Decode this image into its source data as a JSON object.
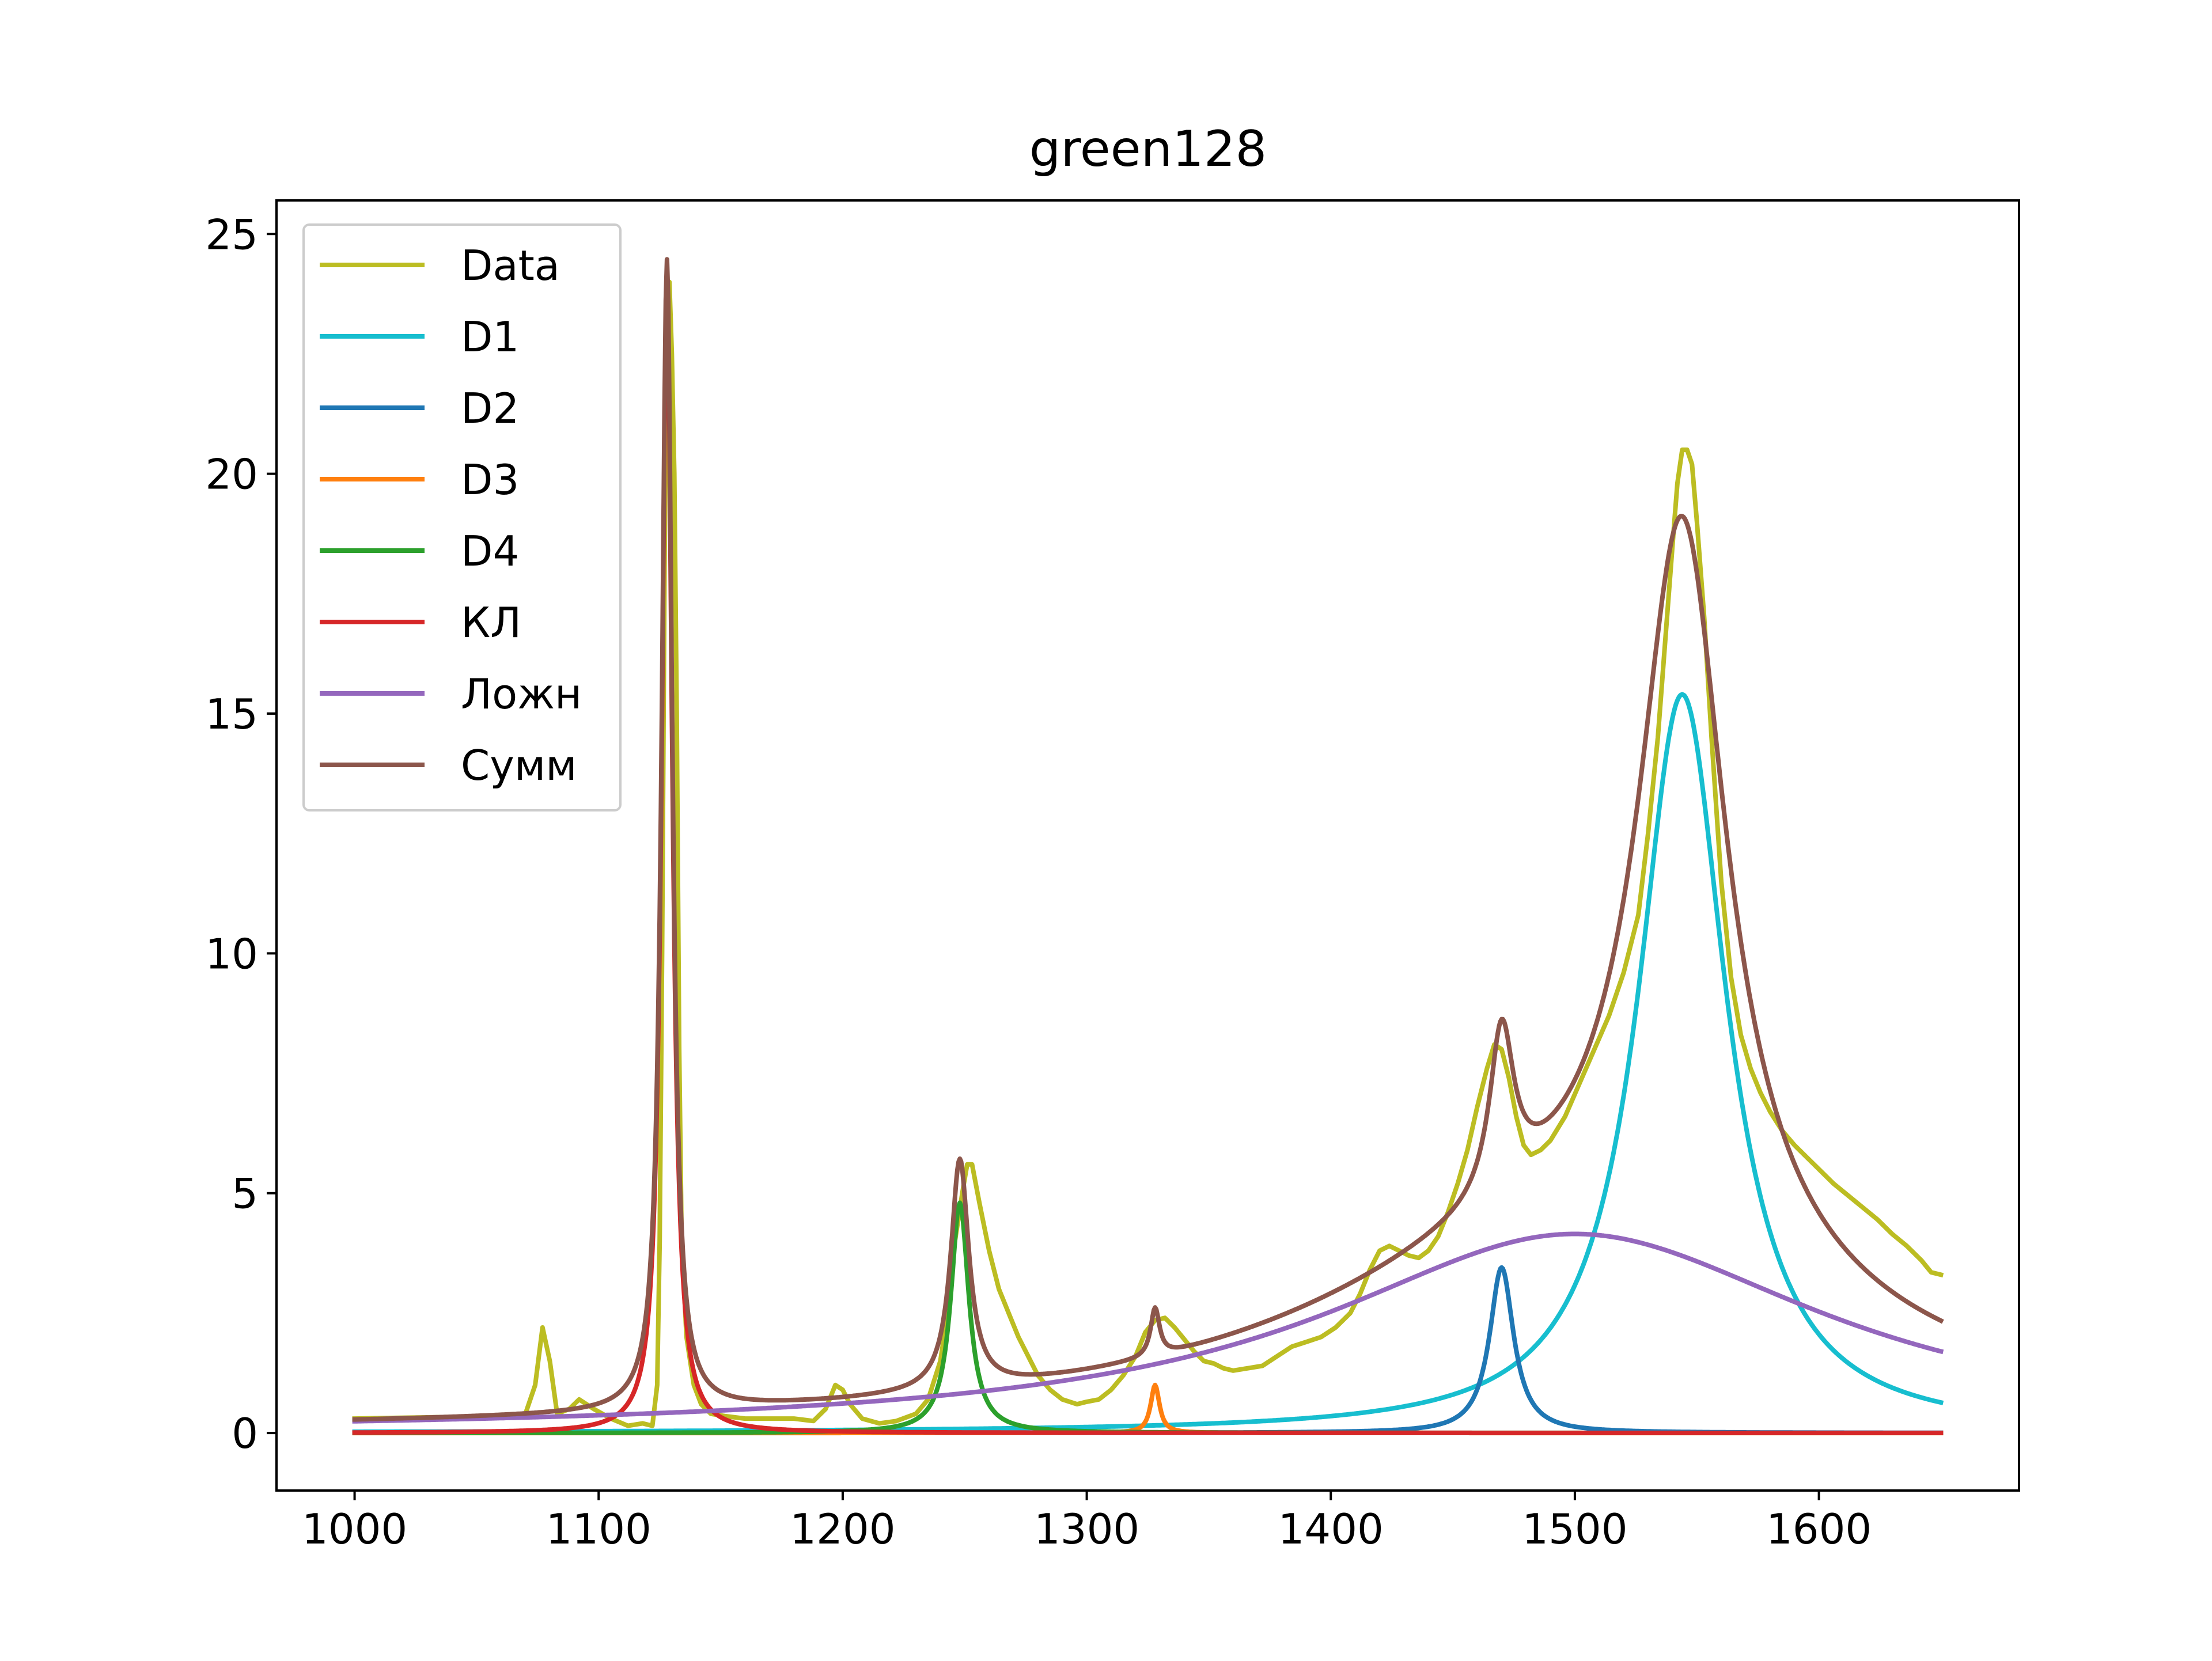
{
  "chart_data": {
    "type": "line",
    "title": "green128",
    "xlabel": "",
    "ylabel": "",
    "xlim": [
      968,
      1682
    ],
    "ylim": [
      -1.2,
      25.7
    ],
    "x_ticks": [
      1000,
      1100,
      1200,
      1300,
      1400,
      1500,
      1600
    ],
    "y_ticks": [
      0,
      5,
      10,
      15,
      20,
      25
    ],
    "grid": false,
    "legend_position": "top-left",
    "series": [
      {
        "name": "Data",
        "color": "#bcbd22",
        "points": [
          [
            1000,
            0.3
          ],
          [
            1060,
            0.35
          ],
          [
            1070,
            0.4
          ],
          [
            1074,
            1.0
          ],
          [
            1077,
            2.2
          ],
          [
            1080,
            1.5
          ],
          [
            1083,
            0.4
          ],
          [
            1088,
            0.5
          ],
          [
            1092,
            0.7
          ],
          [
            1098,
            0.5
          ],
          [
            1105,
            0.3
          ],
          [
            1112,
            0.15
          ],
          [
            1118,
            0.2
          ],
          [
            1122,
            0.15
          ],
          [
            1124,
            1.0
          ],
          [
            1125,
            4.0
          ],
          [
            1126,
            10.0
          ],
          [
            1127,
            18.0
          ],
          [
            1128,
            23.5
          ],
          [
            1129,
            24.0
          ],
          [
            1130,
            22.5
          ],
          [
            1131,
            20.0
          ],
          [
            1132,
            15.0
          ],
          [
            1133,
            8.0
          ],
          [
            1134,
            4.0
          ],
          [
            1136,
            2.0
          ],
          [
            1139,
            1.0
          ],
          [
            1142,
            0.6
          ],
          [
            1146,
            0.4
          ],
          [
            1152,
            0.35
          ],
          [
            1160,
            0.3
          ],
          [
            1170,
            0.3
          ],
          [
            1180,
            0.3
          ],
          [
            1188,
            0.25
          ],
          [
            1193,
            0.5
          ],
          [
            1197,
            1.0
          ],
          [
            1200,
            0.9
          ],
          [
            1203,
            0.6
          ],
          [
            1208,
            0.3
          ],
          [
            1215,
            0.2
          ],
          [
            1222,
            0.25
          ],
          [
            1230,
            0.4
          ],
          [
            1235,
            0.7
          ],
          [
            1240,
            1.5
          ],
          [
            1243,
            2.5
          ],
          [
            1246,
            4.0
          ],
          [
            1249,
            5.0
          ],
          [
            1251,
            5.6
          ],
          [
            1253,
            5.6
          ],
          [
            1256,
            4.8
          ],
          [
            1260,
            3.8
          ],
          [
            1264,
            3.0
          ],
          [
            1268,
            2.5
          ],
          [
            1272,
            2.0
          ],
          [
            1276,
            1.6
          ],
          [
            1280,
            1.2
          ],
          [
            1285,
            0.9
          ],
          [
            1290,
            0.7
          ],
          [
            1296,
            0.6
          ],
          [
            1300,
            0.65
          ],
          [
            1305,
            0.7
          ],
          [
            1310,
            0.9
          ],
          [
            1315,
            1.2
          ],
          [
            1320,
            1.6
          ],
          [
            1324,
            2.1
          ],
          [
            1328,
            2.35
          ],
          [
            1332,
            2.4
          ],
          [
            1336,
            2.2
          ],
          [
            1340,
            1.95
          ],
          [
            1344,
            1.7
          ],
          [
            1348,
            1.5
          ],
          [
            1352,
            1.45
          ],
          [
            1356,
            1.35
          ],
          [
            1360,
            1.3
          ],
          [
            1366,
            1.35
          ],
          [
            1372,
            1.4
          ],
          [
            1378,
            1.6
          ],
          [
            1384,
            1.8
          ],
          [
            1390,
            1.9
          ],
          [
            1396,
            2.0
          ],
          [
            1402,
            2.2
          ],
          [
            1408,
            2.5
          ],
          [
            1412,
            2.9
          ],
          [
            1416,
            3.4
          ],
          [
            1420,
            3.8
          ],
          [
            1424,
            3.9
          ],
          [
            1428,
            3.8
          ],
          [
            1432,
            3.7
          ],
          [
            1436,
            3.65
          ],
          [
            1440,
            3.8
          ],
          [
            1444,
            4.1
          ],
          [
            1448,
            4.6
          ],
          [
            1452,
            5.2
          ],
          [
            1456,
            5.9
          ],
          [
            1460,
            6.8
          ],
          [
            1464,
            7.6
          ],
          [
            1467,
            8.1
          ],
          [
            1470,
            8.0
          ],
          [
            1473,
            7.4
          ],
          [
            1476,
            6.6
          ],
          [
            1479,
            6.0
          ],
          [
            1482,
            5.8
          ],
          [
            1486,
            5.9
          ],
          [
            1490,
            6.1
          ],
          [
            1496,
            6.6
          ],
          [
            1502,
            7.3
          ],
          [
            1508,
            8.0
          ],
          [
            1514,
            8.7
          ],
          [
            1520,
            9.6
          ],
          [
            1526,
            10.8
          ],
          [
            1530,
            12.5
          ],
          [
            1534,
            14.5
          ],
          [
            1537,
            16.5
          ],
          [
            1540,
            18.5
          ],
          [
            1542,
            19.8
          ],
          [
            1544,
            20.5
          ],
          [
            1546,
            20.5
          ],
          [
            1548,
            20.2
          ],
          [
            1550,
            19.0
          ],
          [
            1553,
            17.0
          ],
          [
            1556,
            14.5
          ],
          [
            1560,
            11.5
          ],
          [
            1564,
            9.5
          ],
          [
            1568,
            8.3
          ],
          [
            1572,
            7.6
          ],
          [
            1576,
            7.1
          ],
          [
            1580,
            6.7
          ],
          [
            1585,
            6.3
          ],
          [
            1590,
            6.0
          ],
          [
            1595,
            5.75
          ],
          [
            1600,
            5.5
          ],
          [
            1606,
            5.2
          ],
          [
            1612,
            4.95
          ],
          [
            1618,
            4.7
          ],
          [
            1624,
            4.45
          ],
          [
            1630,
            4.15
          ],
          [
            1636,
            3.9
          ],
          [
            1642,
            3.6
          ],
          [
            1646,
            3.35
          ],
          [
            1650,
            3.3
          ]
        ]
      },
      {
        "name": "D1",
        "color": "#17becf",
        "lorentz": [
          [
            15.4,
            1544,
            22
          ]
        ],
        "offset": 0
      },
      {
        "name": "D2",
        "color": "#1f77b4",
        "lorentz": [
          [
            3.45,
            1470,
            6
          ]
        ],
        "offset": 0
      },
      {
        "name": "D3",
        "color": "#ff7f0e",
        "lorentz": [
          [
            1.0,
            1328,
            2.2
          ]
        ],
        "offset": 0
      },
      {
        "name": "D4",
        "color": "#2ca02c",
        "lorentz": [
          [
            4.8,
            1248,
            4.5
          ]
        ],
        "offset": 0
      },
      {
        "name": "КЛ",
        "color": "#d62728",
        "lorentz": [
          [
            24.0,
            1128,
            2.6
          ]
        ],
        "offset": 0
      },
      {
        "name": "Ложн",
        "color": "#9467bd",
        "lorentz": [
          [
            4.15,
            1500,
            125
          ]
        ],
        "offset": 0
      },
      {
        "name": "Сумм",
        "color": "#8c564b",
        "lorentz": [
          [
            15.4,
            1544,
            22
          ],
          [
            3.45,
            1470,
            6
          ],
          [
            1.0,
            1328,
            2.2
          ],
          [
            4.8,
            1248,
            4.5
          ],
          [
            24.0,
            1128,
            2.6
          ],
          [
            4.15,
            1500,
            125
          ]
        ],
        "offset": 0
      }
    ]
  }
}
